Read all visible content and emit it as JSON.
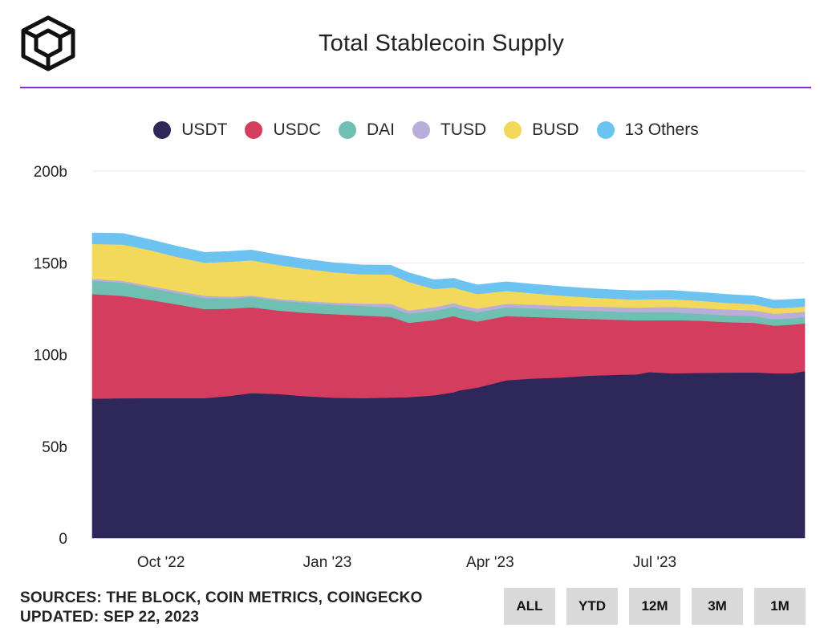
{
  "header": {
    "title": "Total Stablecoin Supply",
    "logo_icon": "the-block-cube-logo"
  },
  "legend": [
    {
      "label": "USDT",
      "color": "#2d2859"
    },
    {
      "label": "USDC",
      "color": "#d43d5e"
    },
    {
      "label": "DAI",
      "color": "#6fbfb2"
    },
    {
      "label": "TUSD",
      "color": "#b9add9"
    },
    {
      "label": "BUSD",
      "color": "#f3d95a"
    },
    {
      "label": "13 Others",
      "color": "#6cc2f0"
    }
  ],
  "footer": {
    "sources": "SOURCES: THE BLOCK, COIN METRICS, COINGECKO",
    "updated": "UPDATED: SEP 22, 2023"
  },
  "range_buttons": [
    "ALL",
    "YTD",
    "12M",
    "3M",
    "1M"
  ],
  "chart_data": {
    "type": "area",
    "stacked": true,
    "title": "Total Stablecoin Supply",
    "y_unit": "billion USD",
    "ylim": [
      0,
      200
    ],
    "yticks": [
      {
        "value": 0,
        "label": "0"
      },
      {
        "value": 50,
        "label": "50b"
      },
      {
        "value": 100,
        "label": "100b"
      },
      {
        "value": 150,
        "label": "150b"
      },
      {
        "value": 200,
        "label": "200b"
      }
    ],
    "xlim": [
      "2022-08-24",
      "2023-09-22"
    ],
    "xticks": [
      {
        "date": "2022-10-01",
        "label": "Oct '22"
      },
      {
        "date": "2023-01-01",
        "label": "Jan '23"
      },
      {
        "date": "2023-04-01",
        "label": "Apr '23"
      },
      {
        "date": "2023-07-01",
        "label": "Jul '23"
      }
    ],
    "grid": true,
    "legend_position": "top",
    "x": [
      "2022-08-24",
      "2022-09-10",
      "2022-09-25",
      "2022-10-10",
      "2022-10-25",
      "2022-11-08",
      "2022-11-20",
      "2022-12-05",
      "2022-12-20",
      "2023-01-05",
      "2023-01-20",
      "2023-02-05",
      "2023-02-15",
      "2023-03-01",
      "2023-03-12",
      "2023-03-15",
      "2023-03-25",
      "2023-04-10",
      "2023-04-25",
      "2023-05-10",
      "2023-05-25",
      "2023-06-10",
      "2023-06-21",
      "2023-06-28",
      "2023-07-10",
      "2023-07-25",
      "2023-08-10",
      "2023-08-25",
      "2023-09-05",
      "2023-09-15",
      "2023-09-22"
    ],
    "series": [
      {
        "name": "USDT",
        "color": "#2d2859",
        "values": [
          76.0,
          76.2,
          76.3,
          76.3,
          76.3,
          77.5,
          79.0,
          78.5,
          77.3,
          76.5,
          76.3,
          76.6,
          76.8,
          77.8,
          79.5,
          80.5,
          82.0,
          86.0,
          87.0,
          87.5,
          88.5,
          89.0,
          89.2,
          90.5,
          89.8,
          90.0,
          90.2,
          90.3,
          89.8,
          89.8,
          91.0
        ]
      },
      {
        "name": "USDC",
        "color": "#d43d5e",
        "values": [
          57.0,
          55.8,
          53.5,
          51.0,
          48.5,
          47.5,
          46.8,
          45.5,
          45.5,
          45.5,
          45.0,
          44.0,
          40.5,
          41.0,
          41.5,
          39.5,
          36.0,
          35.0,
          33.5,
          32.5,
          31.0,
          30.0,
          29.5,
          28.2,
          29.0,
          28.5,
          27.5,
          27.0,
          26.0,
          26.5,
          26.0
        ]
      },
      {
        "name": "DAI",
        "color": "#6fbfb2",
        "values": [
          7.3,
          7.2,
          6.5,
          6.2,
          6.0,
          5.6,
          5.5,
          5.4,
          5.4,
          5.2,
          5.2,
          5.1,
          5.0,
          5.0,
          5.1,
          5.1,
          5.0,
          4.8,
          4.7,
          4.5,
          4.5,
          4.4,
          4.3,
          4.3,
          4.3,
          3.8,
          3.7,
          3.6,
          3.5,
          3.5,
          3.4
        ]
      },
      {
        "name": "TUSD",
        "color": "#b9add9",
        "values": [
          1.0,
          1.0,
          1.1,
          1.2,
          1.3,
          1.0,
          0.9,
          0.9,
          1.0,
          1.1,
          1.3,
          2.0,
          1.8,
          2.0,
          2.0,
          2.0,
          2.0,
          1.9,
          2.0,
          2.1,
          2.2,
          2.5,
          2.6,
          2.8,
          2.9,
          3.1,
          3.2,
          3.2,
          3.0,
          3.0,
          3.0
        ]
      },
      {
        "name": "BUSD",
        "color": "#f3d95a",
        "values": [
          19.0,
          19.8,
          19.5,
          18.5,
          18.0,
          19.0,
          19.2,
          18.5,
          17.5,
          16.5,
          16.0,
          16.0,
          15.5,
          10.0,
          8.5,
          8.5,
          8.0,
          7.0,
          6.2,
          5.6,
          5.0,
          4.5,
          4.4,
          4.4,
          4.3,
          4.0,
          3.6,
          3.4,
          3.0,
          2.9,
          2.8
        ]
      },
      {
        "name": "13 Others",
        "color": "#6cc2f0",
        "values": [
          6.0,
          6.0,
          5.8,
          5.8,
          5.6,
          5.6,
          5.6,
          5.5,
          5.3,
          5.2,
          5.1,
          5.0,
          5.0,
          5.0,
          5.0,
          5.0,
          5.0,
          5.0,
          4.9,
          4.9,
          4.9,
          4.8,
          4.8,
          4.7,
          4.7,
          4.6,
          4.6,
          4.5,
          4.4,
          4.4,
          4.3
        ]
      }
    ]
  }
}
